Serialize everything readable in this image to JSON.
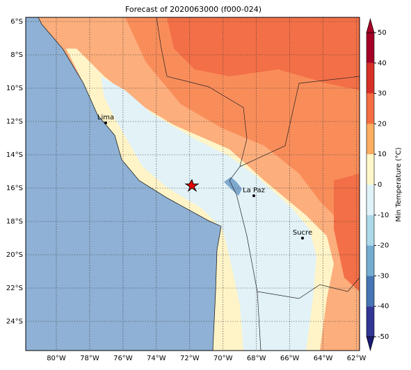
{
  "title": "Forecast of 2020063000 (f000-024)",
  "map": {
    "lon_ticks": [
      "80°W",
      "78°W",
      "76°W",
      "74°W",
      "72°W",
      "70°W",
      "68°W",
      "66°W",
      "64°W",
      "62°W"
    ],
    "lat_ticks": [
      "6°S",
      "8°S",
      "10°S",
      "12°S",
      "14°S",
      "16°S",
      "18°S",
      "20°S",
      "22°S",
      "24°S"
    ],
    "cities": [
      "Lima",
      "La Paz",
      "Sucre"
    ]
  },
  "colorbar": {
    "label": "Min Temperature (°C)",
    "ticks": [
      -50,
      -40,
      -30,
      -20,
      -10,
      0,
      10,
      20,
      30,
      40,
      50
    ],
    "colors": [
      "#313695",
      "#4575b4",
      "#74add1",
      "#abd9e9",
      "#e0f3f8",
      "#fff7c9",
      "#fdae61",
      "#f46d43",
      "#d73027",
      "#a50026"
    ]
  }
}
